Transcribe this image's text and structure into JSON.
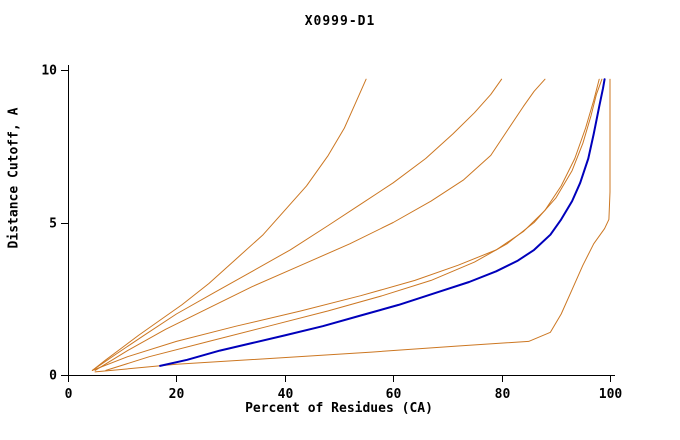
{
  "chart_data": {
    "type": "line",
    "title": "X0999-D1",
    "xlabel": "Percent of Residues (CA)",
    "ylabel": "Distance Cutoff, A",
    "xlim": [
      0,
      100
    ],
    "ylim": [
      0,
      10
    ],
    "x_ticks": [
      0,
      20,
      40,
      60,
      80,
      100
    ],
    "y_ticks": [
      0,
      5,
      10
    ],
    "grid": false,
    "legend_position": "none",
    "colors": {
      "axis": "#000000",
      "reference": "#cc7722",
      "model": "#0000bb"
    },
    "series": [
      {
        "name": "orange-1",
        "color": "#cc7722",
        "width": 1,
        "points": [
          [
            4.5,
            0.15
          ],
          [
            7,
            0.5
          ],
          [
            10,
            0.9
          ],
          [
            13,
            1.3
          ],
          [
            17,
            1.8
          ],
          [
            21,
            2.3
          ],
          [
            26,
            3.0
          ],
          [
            31,
            3.8
          ],
          [
            36,
            4.6
          ],
          [
            40,
            5.4
          ],
          [
            44,
            6.2
          ],
          [
            48,
            7.2
          ],
          [
            51,
            8.1
          ],
          [
            53,
            8.9
          ],
          [
            55,
            9.7
          ]
        ]
      },
      {
        "name": "orange-2",
        "color": "#cc7722",
        "width": 1,
        "points": [
          [
            4.5,
            0.15
          ],
          [
            9,
            0.7
          ],
          [
            14,
            1.3
          ],
          [
            20,
            2.0
          ],
          [
            27,
            2.7
          ],
          [
            34,
            3.4
          ],
          [
            41,
            4.1
          ],
          [
            48,
            4.9
          ],
          [
            54,
            5.6
          ],
          [
            60,
            6.3
          ],
          [
            66,
            7.1
          ],
          [
            71,
            7.9
          ],
          [
            75,
            8.6
          ],
          [
            78,
            9.2
          ],
          [
            80,
            9.7
          ]
        ]
      },
      {
        "name": "orange-3",
        "color": "#cc7722",
        "width": 1,
        "points": [
          [
            5,
            0.15
          ],
          [
            11,
            0.8
          ],
          [
            18,
            1.5
          ],
          [
            26,
            2.2
          ],
          [
            34,
            2.9
          ],
          [
            43,
            3.6
          ],
          [
            52,
            4.3
          ],
          [
            60,
            5.0
          ],
          [
            67,
            5.7
          ],
          [
            73,
            6.4
          ],
          [
            78,
            7.2
          ],
          [
            81,
            8.0
          ],
          [
            84,
            8.8
          ],
          [
            86,
            9.3
          ],
          [
            88,
            9.7
          ]
        ]
      },
      {
        "name": "orange-4",
        "color": "#cc7722",
        "width": 1,
        "points": [
          [
            4.5,
            0.15
          ],
          [
            11,
            0.6
          ],
          [
            20,
            1.1
          ],
          [
            31,
            1.6
          ],
          [
            43,
            2.1
          ],
          [
            54,
            2.6
          ],
          [
            64,
            3.1
          ],
          [
            72,
            3.6
          ],
          [
            79,
            4.1
          ],
          [
            84,
            4.7
          ],
          [
            88,
            5.4
          ],
          [
            91,
            6.2
          ],
          [
            93.5,
            7.1
          ],
          [
            95.5,
            8.1
          ],
          [
            97,
            9.0
          ],
          [
            98,
            9.7
          ]
        ]
      },
      {
        "name": "orange-5",
        "color": "#cc7722",
        "width": 1,
        "points": [
          [
            7,
            0.15
          ],
          [
            15,
            0.6
          ],
          [
            26,
            1.1
          ],
          [
            37,
            1.6
          ],
          [
            48,
            2.1
          ],
          [
            58,
            2.6
          ],
          [
            67,
            3.1
          ],
          [
            75,
            3.7
          ],
          [
            81,
            4.3
          ],
          [
            86,
            5.0
          ],
          [
            90,
            5.8
          ],
          [
            93,
            6.7
          ],
          [
            95,
            7.6
          ],
          [
            96.5,
            8.5
          ],
          [
            97.5,
            9.2
          ],
          [
            98.5,
            9.7
          ]
        ]
      },
      {
        "name": "orange-6",
        "color": "#cc7722",
        "width": 1,
        "points": [
          [
            5,
            0.1
          ],
          [
            20,
            0.35
          ],
          [
            38,
            0.55
          ],
          [
            56,
            0.75
          ],
          [
            72,
            0.95
          ],
          [
            85,
            1.1
          ],
          [
            89,
            1.4
          ],
          [
            91,
            2.0
          ],
          [
            93,
            2.8
          ],
          [
            95,
            3.6
          ],
          [
            97,
            4.3
          ],
          [
            99,
            4.8
          ],
          [
            99.8,
            5.1
          ],
          [
            100,
            6.0
          ],
          [
            100,
            9.7
          ]
        ]
      },
      {
        "name": "model-blue",
        "color": "#0000bb",
        "width": 2,
        "points": [
          [
            17,
            0.3
          ],
          [
            22,
            0.5
          ],
          [
            28,
            0.8
          ],
          [
            34,
            1.05
          ],
          [
            40,
            1.3
          ],
          [
            47,
            1.6
          ],
          [
            54,
            1.95
          ],
          [
            61,
            2.3
          ],
          [
            68,
            2.7
          ],
          [
            74,
            3.05
          ],
          [
            79,
            3.4
          ],
          [
            83,
            3.75
          ],
          [
            86,
            4.1
          ],
          [
            89,
            4.6
          ],
          [
            91,
            5.1
          ],
          [
            93,
            5.7
          ],
          [
            94.5,
            6.3
          ],
          [
            96,
            7.1
          ],
          [
            97,
            7.9
          ],
          [
            98,
            8.8
          ],
          [
            98.7,
            9.4
          ],
          [
            99,
            9.7
          ]
        ]
      }
    ]
  }
}
